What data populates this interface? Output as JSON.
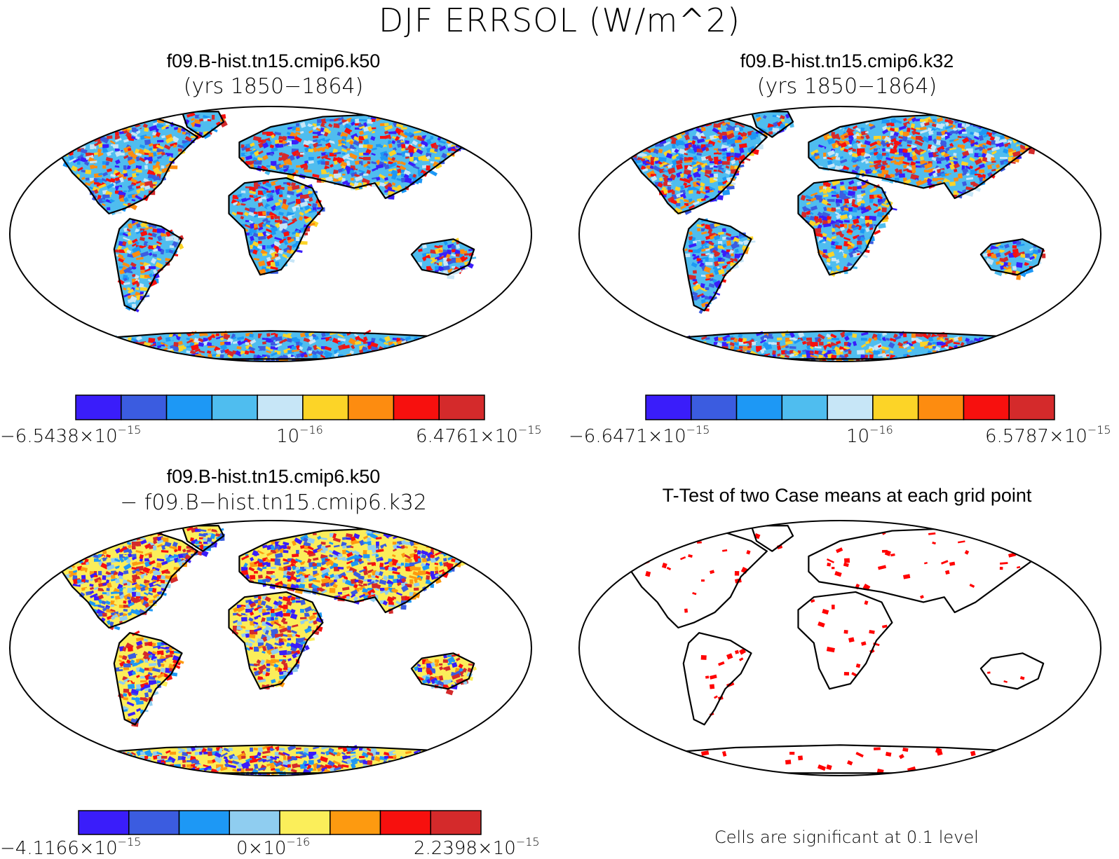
{
  "title": "DJF ERRSOL (W/m^2)",
  "panels": [
    {
      "title": "f09.B-hist.tn15.cmip6.k50",
      "subtitle": "(yrs 1850−1864)",
      "colorbar": {
        "colors": [
          "#3a1dfa",
          "#3b5ce0",
          "#1d98f5",
          "#4fbdef",
          "#c7e6f7",
          "#fcd427",
          "#fd8c10",
          "#f7100e",
          "#d42a2b"
        ],
        "min_label": {
          "base": "−6.5438×10",
          "exp": "−15"
        },
        "mid_label": {
          "base": "10",
          "exp": "−16"
        },
        "max_label": {
          "base": "6.4761×10",
          "exp": "−15"
        }
      }
    },
    {
      "title": "f09.B-hist.tn15.cmip6.k32",
      "subtitle": "(yrs 1850−1864)",
      "colorbar": {
        "colors": [
          "#3a1dfa",
          "#3b5ce0",
          "#1d98f5",
          "#4fbdef",
          "#c7e6f7",
          "#fcd427",
          "#fd8c10",
          "#f7100e",
          "#d42a2b"
        ],
        "min_label": {
          "base": "−6.6471×10",
          "exp": "−15"
        },
        "mid_label": {
          "base": "10",
          "exp": "−16"
        },
        "max_label": {
          "base": "6.5787×10",
          "exp": "−15"
        }
      }
    },
    {
      "title": "f09.B-hist.tn15.cmip6.k50",
      "subtitle": "− f09.B−hist.tn15.cmip6.k32",
      "colorbar": {
        "colors": [
          "#3a1dfa",
          "#3b5ce0",
          "#1d98f5",
          "#8fcdf0",
          "#fbee5a",
          "#fd9a10",
          "#f7100e",
          "#d42a2b"
        ],
        "min_label": {
          "base": "−4.1166×10",
          "exp": "−15"
        },
        "mid_label": {
          "base": "0×10",
          "exp": "−16"
        },
        "max_label": {
          "base": "2.2398×10",
          "exp": "−15"
        }
      }
    },
    {
      "title": "T-Test of two Case means at each grid point",
      "note": "Cells are significant at 0.1 level",
      "sig_color": "#ff0000"
    }
  ]
}
